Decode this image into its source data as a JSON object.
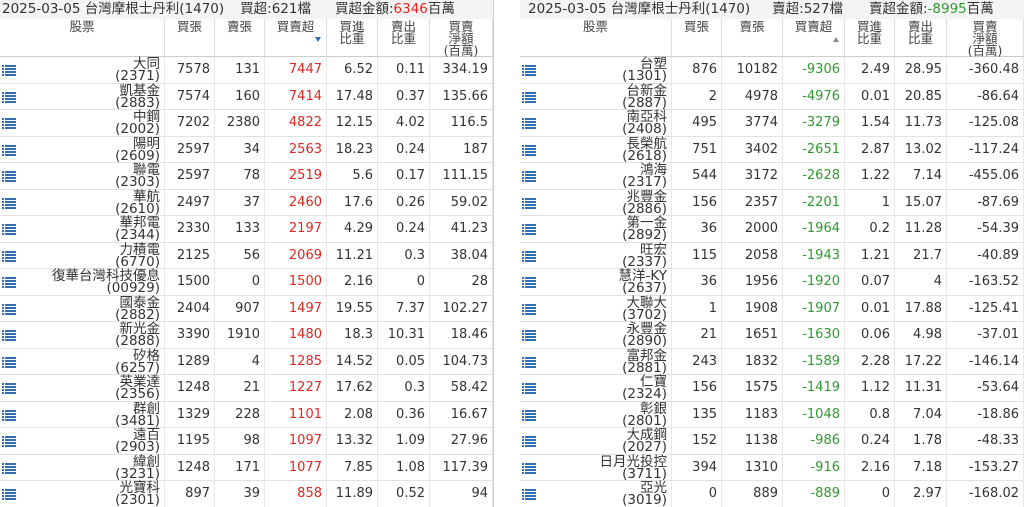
{
  "panels": [
    {
      "header": {
        "title": "2025-03-05 台灣摩根士丹利(1470)",
        "count": "買超:621檔",
        "amount_label": "買超金額:",
        "amount": "6346",
        "unit": "百萬"
      },
      "columns": [
        [
          "股票"
        ],
        [
          "買張"
        ],
        [
          "賣張"
        ],
        [
          "買賣超"
        ],
        [
          "買進",
          "比重"
        ],
        [
          "賣出",
          "比重"
        ],
        [
          "買賣",
          "淨額",
          "(百萬)"
        ]
      ],
      "rows": [
        [
          "大同",
          "(2371)",
          7578,
          131,
          7447,
          6.52,
          0.11,
          334.19
        ],
        [
          "凱基金",
          "(2883)",
          7574,
          160,
          7414,
          17.48,
          0.37,
          135.66
        ],
        [
          "中鋼",
          "(2002)",
          7202,
          2380,
          4822,
          12.15,
          4.02,
          116.5
        ],
        [
          "陽明",
          "(2609)",
          2597,
          34,
          2563,
          18.23,
          0.24,
          187
        ],
        [
          "聯電",
          "(2303)",
          2597,
          78,
          2519,
          5.6,
          0.17,
          111.15
        ],
        [
          "華航",
          "(2610)",
          2497,
          37,
          2460,
          17.6,
          0.26,
          59.02
        ],
        [
          "華邦電",
          "(2344)",
          2330,
          133,
          2197,
          4.29,
          0.24,
          41.23
        ],
        [
          "力積電",
          "(6770)",
          2125,
          56,
          2069,
          11.21,
          0.3,
          38.04
        ],
        [
          "復華台灣科技優息",
          "(00929)",
          1500,
          0,
          1500,
          2.16,
          0,
          28
        ],
        [
          "國泰金",
          "(2882)",
          2404,
          907,
          1497,
          19.55,
          7.37,
          102.27
        ],
        [
          "新光金",
          "(2888)",
          3390,
          1910,
          1480,
          18.3,
          10.31,
          18.46
        ],
        [
          "矽格",
          "(6257)",
          1289,
          4,
          1285,
          14.52,
          0.05,
          104.73
        ],
        [
          "英業達",
          "(2356)",
          1248,
          21,
          1227,
          17.62,
          0.3,
          58.42
        ],
        [
          "群創",
          "(3481)",
          1329,
          228,
          1101,
          2.08,
          0.36,
          16.67
        ],
        [
          "遠百",
          "(2903)",
          1195,
          98,
          1097,
          13.32,
          1.09,
          27.96
        ],
        [
          "緯創",
          "(3231)",
          1248,
          171,
          1077,
          7.85,
          1.08,
          117.39
        ],
        [
          "光寶科",
          "(2301)",
          897,
          39,
          858,
          11.89,
          0.52,
          94
        ]
      ]
    },
    {
      "header": {
        "title": "2025-03-05 台灣摩根士丹利(1470)",
        "count": "賣超:527檔",
        "amount_label": "賣超金額:",
        "amount": "-8995",
        "unit": "百萬"
      },
      "columns": [
        [
          "股票"
        ],
        [
          "買張"
        ],
        [
          "賣張"
        ],
        [
          "買賣超"
        ],
        [
          "買進",
          "比重"
        ],
        [
          "賣出",
          "比重"
        ],
        [
          "買賣",
          "淨額",
          "(百萬)"
        ]
      ],
      "rows": [
        [
          "台塑",
          "(1301)",
          876,
          10182,
          -9306,
          2.49,
          28.95,
          -360.48
        ],
        [
          "台新金",
          "(2887)",
          2,
          4978,
          -4976,
          0.01,
          20.85,
          -86.64
        ],
        [
          "南亞科",
          "(2408)",
          495,
          3774,
          -3279,
          1.54,
          11.73,
          -125.08
        ],
        [
          "長榮航",
          "(2618)",
          751,
          3402,
          -2651,
          2.87,
          13.02,
          -117.24
        ],
        [
          "鴻海",
          "(2317)",
          544,
          3172,
          -2628,
          1.22,
          7.14,
          -455.06
        ],
        [
          "兆豐金",
          "(2886)",
          156,
          2357,
          -2201,
          1,
          15.07,
          -87.69
        ],
        [
          "第一金",
          "(2892)",
          36,
          2000,
          -1964,
          0.2,
          11.28,
          -54.39
        ],
        [
          "旺宏",
          "(2337)",
          115,
          2058,
          -1943,
          1.21,
          21.7,
          -40.89
        ],
        [
          "慧洋-KY",
          "(2637)",
          36,
          1956,
          -1920,
          0.07,
          4,
          -163.52
        ],
        [
          "大聯大",
          "(3702)",
          1,
          1908,
          -1907,
          0.01,
          17.88,
          -125.41
        ],
        [
          "永豐金",
          "(2890)",
          21,
          1651,
          -1630,
          0.06,
          4.98,
          -37.01
        ],
        [
          "富邦金",
          "(2881)",
          243,
          1832,
          -1589,
          2.28,
          17.22,
          -146.14
        ],
        [
          "仁寶",
          "(2324)",
          156,
          1575,
          -1419,
          1.12,
          11.31,
          -53.64
        ],
        [
          "彰銀",
          "(2801)",
          135,
          1183,
          -1048,
          0.8,
          7.04,
          -18.86
        ],
        [
          "大成鋼",
          "(2027)",
          152,
          1138,
          -986,
          0.24,
          1.78,
          -48.33
        ],
        [
          "日月光投控",
          "(3711)",
          394,
          1310,
          -916,
          2.16,
          7.18,
          -153.27
        ],
        [
          "亞光",
          "(3019)",
          0,
          889,
          -889,
          0,
          2.97,
          -168.02
        ]
      ]
    }
  ]
}
